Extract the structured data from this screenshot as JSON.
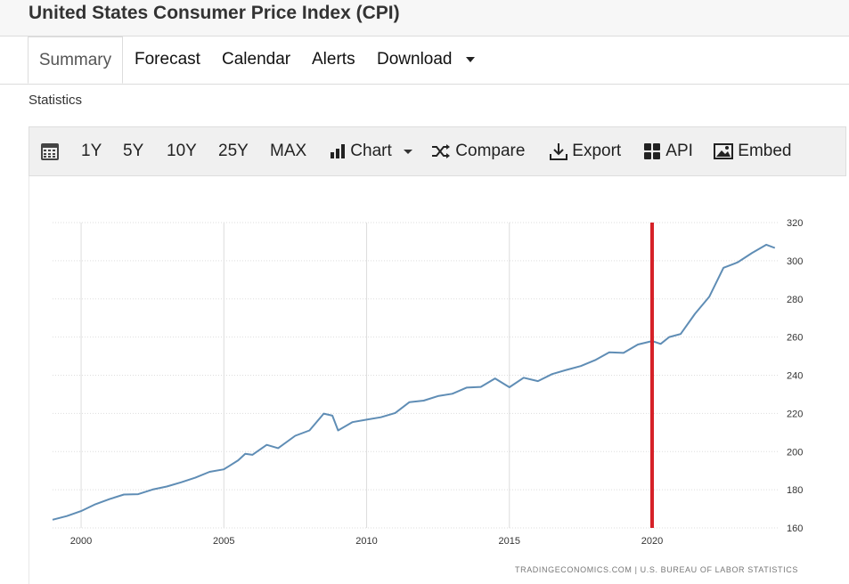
{
  "header": {
    "title": "United States Consumer Price Index (CPI)"
  },
  "tabs": [
    {
      "label": "Summary",
      "active": true
    },
    {
      "label": "Forecast"
    },
    {
      "label": "Calendar"
    },
    {
      "label": "Alerts"
    },
    {
      "label": "Download",
      "has_dropdown": true
    }
  ],
  "section_label": "Statistics",
  "toolbar": {
    "calendar_icon": "calendar-icon",
    "ranges": [
      "1Y",
      "5Y",
      "10Y",
      "25Y",
      "MAX"
    ],
    "chart_label": "Chart",
    "compare_label": "Compare",
    "export_label": "Export",
    "api_label": "API",
    "embed_label": "Embed"
  },
  "credit": "TRADINGECONOMICS.COM  |  U.S. BUREAU OF LABOR STATISTICS",
  "colors": {
    "line": "#5f8db5",
    "marker": "#d62128",
    "grid": "#dddddd"
  },
  "chart_data": {
    "type": "line",
    "title": "",
    "xlabel": "",
    "ylabel": "",
    "y_axis_side": "right",
    "ylim": [
      160,
      320
    ],
    "y_ticks": [
      160,
      180,
      200,
      220,
      240,
      260,
      280,
      300,
      320
    ],
    "xlim": [
      1999,
      2024.4
    ],
    "x_ticks": [
      2000,
      2005,
      2010,
      2015,
      2020
    ],
    "grid": true,
    "series": [
      {
        "x": [
          1999.0,
          1999.5,
          2000.0,
          2000.5,
          2001.0,
          2001.5,
          2002.0,
          2002.5,
          2003.0,
          2003.5,
          2004.0,
          2004.5,
          2005.0,
          2005.5,
          2005.75,
          2006.0,
          2006.5,
          2006.9,
          2007.5,
          2008.0,
          2008.5,
          2008.8,
          2009.0,
          2009.5,
          2010.0,
          2010.5,
          2011.0,
          2011.5,
          2012.0,
          2012.5,
          2013.0,
          2013.5,
          2014.0,
          2014.5,
          2015.0,
          2015.5,
          2016.0,
          2016.5,
          2017.0,
          2017.5,
          2018.0,
          2018.5,
          2019.0,
          2019.5,
          2020.0,
          2020.3,
          2020.6,
          2021.0,
          2021.5,
          2022.0,
          2022.5,
          2022.9,
          2023.0,
          2023.5,
          2024.0,
          2024.3
        ],
        "values": [
          164.3,
          166.2,
          168.8,
          172.4,
          175.1,
          177.5,
          177.7,
          180.1,
          181.7,
          183.9,
          186.3,
          189.4,
          190.7,
          195.4,
          198.8,
          198.3,
          203.5,
          201.8,
          208.3,
          211.1,
          219.9,
          218.8,
          211.1,
          215.4,
          216.7,
          218.0,
          220.2,
          225.9,
          226.7,
          229.1,
          230.3,
          233.5,
          233.9,
          238.3,
          233.7,
          238.7,
          236.9,
          240.6,
          242.8,
          244.8,
          247.9,
          252.0,
          251.7,
          256.1,
          257.9,
          256.4,
          260.0,
          261.6,
          272.2,
          281.1,
          296.3,
          298.6,
          299.2,
          304.1,
          308.4,
          306.7
        ]
      }
    ],
    "marker_line": {
      "x": 2020.0,
      "y_from": 160,
      "y_to": 320
    }
  }
}
